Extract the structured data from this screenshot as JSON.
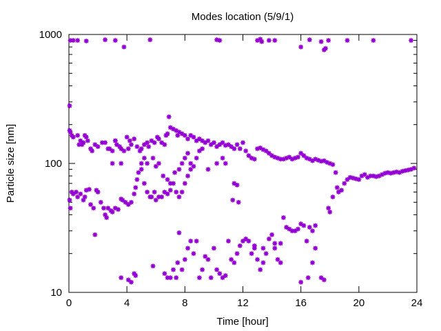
{
  "chart_data": {
    "type": "scatter",
    "title": "Modes location (5/9/1)",
    "xlabel": "Time [hour]",
    "ylabel": "Particle size [nm]",
    "xlim": [
      0,
      24
    ],
    "ylim": [
      10,
      1000
    ],
    "yscale": "log",
    "x_ticks": [
      0,
      4,
      8,
      12,
      16,
      20,
      24
    ],
    "x_tick_labels": [
      "0",
      "4",
      "8",
      "12",
      "16",
      "20",
      "24"
    ],
    "y_ticks": [
      10,
      100,
      1000
    ],
    "y_tick_labels": [
      "10",
      "100",
      "1000"
    ],
    "grid": false,
    "legend": "none",
    "marker_color": "#9400d3",
    "series": [
      {
        "color": "#9400d3",
        "points": [
          [
            0.05,
            280
          ],
          [
            0.05,
            180
          ],
          [
            0.1,
            175
          ],
          [
            0.2,
            165
          ],
          [
            0.3,
            160
          ],
          [
            0.6,
            165
          ],
          [
            0.7,
            140
          ],
          [
            0.8,
            150
          ],
          [
            0.9,
            140
          ],
          [
            1.0,
            145
          ],
          [
            1.1,
            165
          ],
          [
            1.2,
            160
          ],
          [
            1.3,
            150
          ],
          [
            1.5,
            130
          ],
          [
            1.6,
            125
          ],
          [
            1.8,
            140
          ],
          [
            2.0,
            135
          ],
          [
            2.3,
            145
          ],
          [
            2.5,
            145
          ],
          [
            2.8,
            130
          ],
          [
            3.0,
            125
          ],
          [
            3.2,
            150
          ],
          [
            3.3,
            140
          ],
          [
            3.5,
            135
          ],
          [
            3.6,
            130
          ],
          [
            3.8,
            125
          ],
          [
            4.0,
            160
          ],
          [
            4.2,
            150
          ],
          [
            4.3,
            140
          ],
          [
            4.5,
            155
          ],
          [
            4.7,
            135
          ],
          [
            4.9,
            125
          ],
          [
            5.0,
            130
          ],
          [
            5.2,
            140
          ],
          [
            5.4,
            145
          ],
          [
            5.5,
            135
          ],
          [
            5.7,
            150
          ],
          [
            5.9,
            145
          ],
          [
            6.1,
            160
          ],
          [
            6.2,
            155
          ],
          [
            6.4,
            145
          ],
          [
            6.6,
            140
          ],
          [
            6.7,
            165
          ],
          [
            6.8,
            170
          ],
          [
            6.9,
            230
          ],
          [
            7.0,
            190
          ],
          [
            7.2,
            185
          ],
          [
            7.4,
            180
          ],
          [
            7.5,
            165
          ],
          [
            7.6,
            175
          ],
          [
            7.8,
            170
          ],
          [
            8.0,
            165
          ],
          [
            8.2,
            155
          ],
          [
            8.4,
            165
          ],
          [
            8.6,
            160
          ],
          [
            8.8,
            150
          ],
          [
            9.0,
            155
          ],
          [
            9.2,
            150
          ],
          [
            9.4,
            145
          ],
          [
            9.6,
            150
          ],
          [
            9.8,
            140
          ],
          [
            10.0,
            145
          ],
          [
            10.2,
            135
          ],
          [
            10.4,
            140
          ],
          [
            10.6,
            145
          ],
          [
            10.8,
            138
          ],
          [
            11.0,
            140
          ],
          [
            11.2,
            135
          ],
          [
            11.4,
            130
          ],
          [
            11.6,
            140
          ],
          [
            11.8,
            130
          ],
          [
            12.0,
            145
          ],
          [
            12.2,
            125
          ],
          [
            12.4,
            115
          ],
          [
            12.6,
            110
          ],
          [
            12.8,
            108
          ],
          [
            13.0,
            130
          ],
          [
            13.2,
            132
          ],
          [
            13.4,
            128
          ],
          [
            13.6,
            125
          ],
          [
            13.8,
            120
          ],
          [
            14.0,
            115
          ],
          [
            14.2,
            112
          ],
          [
            14.4,
            110
          ],
          [
            14.6,
            108
          ],
          [
            14.8,
            108
          ],
          [
            15.0,
            110
          ],
          [
            15.2,
            112
          ],
          [
            15.4,
            108
          ],
          [
            15.6,
            110
          ],
          [
            15.8,
            112
          ],
          [
            16.0,
            120
          ],
          [
            16.2,
            115
          ],
          [
            16.4,
            110
          ],
          [
            16.6,
            108
          ],
          [
            16.8,
            105
          ],
          [
            17.0,
            108
          ],
          [
            17.2,
            106
          ],
          [
            17.4,
            104
          ],
          [
            17.6,
            105
          ],
          [
            17.8,
            102
          ],
          [
            18.0,
            100
          ],
          [
            18.2,
            98
          ],
          [
            18.4,
            85
          ],
          [
            18.5,
            65
          ],
          [
            18.6,
            60
          ],
          [
            18.8,
            62
          ],
          [
            19.0,
            70
          ],
          [
            19.2,
            75
          ],
          [
            19.4,
            78
          ],
          [
            19.6,
            77
          ],
          [
            19.8,
            76
          ],
          [
            20.0,
            75
          ],
          [
            20.2,
            80
          ],
          [
            20.4,
            82
          ],
          [
            20.6,
            78
          ],
          [
            20.8,
            80
          ],
          [
            21.0,
            80
          ],
          [
            21.2,
            79
          ],
          [
            21.4,
            80
          ],
          [
            21.6,
            82
          ],
          [
            21.8,
            84
          ],
          [
            22.0,
            85
          ],
          [
            22.2,
            84
          ],
          [
            22.4,
            85
          ],
          [
            22.6,
            86
          ],
          [
            22.8,
            85
          ],
          [
            23.0,
            87
          ],
          [
            23.2,
            88
          ],
          [
            23.4,
            89
          ],
          [
            23.6,
            90
          ],
          [
            23.8,
            92
          ],
          [
            0.05,
            52
          ],
          [
            0.1,
            45
          ],
          [
            0.2,
            60
          ],
          [
            0.3,
            58
          ],
          [
            0.5,
            60
          ],
          [
            0.6,
            55
          ],
          [
            0.8,
            58
          ],
          [
            1.0,
            52
          ],
          [
            1.1,
            55
          ],
          [
            1.2,
            62
          ],
          [
            1.4,
            63
          ],
          [
            1.5,
            48
          ],
          [
            1.7,
            45
          ],
          [
            1.9,
            62
          ],
          [
            2.0,
            60
          ],
          [
            2.2,
            50
          ],
          [
            2.4,
            45
          ],
          [
            2.5,
            40
          ],
          [
            2.6,
            38
          ],
          [
            2.7,
            45
          ],
          [
            2.9,
            43
          ],
          [
            3.0,
            42
          ],
          [
            3.2,
            45
          ],
          [
            3.4,
            44
          ],
          [
            3.6,
            53
          ],
          [
            3.7,
            52
          ],
          [
            3.9,
            50
          ],
          [
            4.1,
            48
          ],
          [
            4.3,
            50
          ],
          [
            4.5,
            58
          ],
          [
            4.6,
            65
          ],
          [
            4.7,
            75
          ],
          [
            4.8,
            85
          ],
          [
            5.0,
            90
          ],
          [
            5.2,
            70
          ],
          [
            5.4,
            60
          ],
          [
            5.6,
            55
          ],
          [
            5.7,
            55
          ],
          [
            5.9,
            60
          ],
          [
            6.0,
            52
          ],
          [
            6.2,
            55
          ],
          [
            6.4,
            55
          ],
          [
            6.6,
            60
          ],
          [
            6.8,
            58
          ],
          [
            7.0,
            62
          ],
          [
            7.2,
            70
          ],
          [
            7.4,
            60
          ],
          [
            7.6,
            55
          ],
          [
            7.8,
            60
          ],
          [
            8.0,
            70
          ],
          [
            8.2,
            80
          ],
          [
            8.4,
            90
          ],
          [
            8.6,
            95
          ],
          [
            8.8,
            110
          ],
          [
            9.0,
            125
          ],
          [
            9.2,
            130
          ],
          [
            2.7,
            130
          ],
          [
            3.0,
            100
          ],
          [
            3.2,
            150
          ],
          [
            3.6,
            100
          ],
          [
            4.1,
            130
          ],
          [
            5.0,
            100
          ],
          [
            5.2,
            110
          ],
          [
            5.4,
            100
          ],
          [
            5.8,
            110
          ],
          [
            6.0,
            95
          ],
          [
            6.2,
            100
          ],
          [
            6.5,
            80
          ],
          [
            6.8,
            75
          ],
          [
            7.0,
            70
          ],
          [
            7.3,
            85
          ],
          [
            7.6,
            90
          ],
          [
            7.8,
            100
          ],
          [
            8.0,
            110
          ],
          [
            8.2,
            120
          ],
          [
            8.4,
            100
          ],
          [
            9.6,
            90
          ],
          [
            10.2,
            100
          ],
          [
            10.6,
            110
          ],
          [
            10.8,
            100
          ],
          [
            11.4,
            70
          ],
          [
            11.6,
            68
          ],
          [
            11.3,
            52
          ],
          [
            11.7,
            50
          ],
          [
            17.9,
            45
          ],
          [
            18.0,
            42
          ],
          [
            18.2,
            55
          ],
          [
            0.1,
            900
          ],
          [
            0.3,
            900
          ],
          [
            0.6,
            900
          ],
          [
            1.2,
            890
          ],
          [
            2.5,
            910
          ],
          [
            3.2,
            900
          ],
          [
            3.8,
            800
          ],
          [
            5.6,
            910
          ],
          [
            10.2,
            910
          ],
          [
            10.4,
            900
          ],
          [
            13.0,
            900
          ],
          [
            13.2,
            920
          ],
          [
            13.3,
            880
          ],
          [
            13.8,
            900
          ],
          [
            14.2,
            900
          ],
          [
            16.0,
            800
          ],
          [
            16.6,
            910
          ],
          [
            17.4,
            880
          ],
          [
            17.6,
            760
          ],
          [
            17.7,
            780
          ],
          [
            17.9,
            900
          ],
          [
            19.2,
            900
          ],
          [
            21.0,
            900
          ],
          [
            23.6,
            900
          ],
          [
            1.8,
            28
          ],
          [
            3.6,
            13
          ],
          [
            4.1,
            12.5
          ],
          [
            4.3,
            12
          ],
          [
            4.5,
            14
          ],
          [
            4.6,
            13.5
          ],
          [
            5.8,
            16
          ],
          [
            6.6,
            14
          ],
          [
            6.8,
            13
          ],
          [
            7.0,
            13
          ],
          [
            7.2,
            15
          ],
          [
            7.4,
            13
          ],
          [
            7.5,
            17
          ],
          [
            7.6,
            29
          ],
          [
            7.8,
            15
          ],
          [
            8.0,
            18
          ],
          [
            8.2,
            22
          ],
          [
            8.4,
            25
          ],
          [
            8.6,
            20
          ],
          [
            8.8,
            25
          ],
          [
            9.0,
            13
          ],
          [
            9.2,
            15
          ],
          [
            9.4,
            19
          ],
          [
            9.6,
            18
          ],
          [
            9.8,
            13
          ],
          [
            10.0,
            22
          ],
          [
            10.2,
            15
          ],
          [
            10.4,
            14
          ],
          [
            10.6,
            13
          ],
          [
            10.8,
            13.5
          ],
          [
            11.0,
            25
          ],
          [
            11.2,
            18
          ],
          [
            11.4,
            17
          ],
          [
            11.6,
            20
          ],
          [
            11.8,
            23
          ],
          [
            12.0,
            25
          ],
          [
            12.2,
            26
          ],
          [
            12.4,
            25
          ],
          [
            12.6,
            20
          ],
          [
            12.8,
            22
          ],
          [
            13.0,
            18
          ],
          [
            13.2,
            15
          ],
          [
            13.4,
            17
          ],
          [
            13.6,
            20
          ],
          [
            13.8,
            26
          ],
          [
            14.0,
            28
          ],
          [
            14.2,
            24
          ],
          [
            14.4,
            18
          ],
          [
            14.6,
            17
          ],
          [
            14.8,
            38
          ],
          [
            15.0,
            32
          ],
          [
            15.2,
            31
          ],
          [
            15.4,
            30
          ],
          [
            15.6,
            30
          ],
          [
            15.8,
            31
          ],
          [
            16.0,
            34
          ],
          [
            16.2,
            33
          ],
          [
            16.4,
            25
          ],
          [
            16.6,
            32
          ],
          [
            16.8,
            30
          ],
          [
            17.0,
            33
          ],
          [
            16.0,
            12
          ],
          [
            16.5,
            13
          ],
          [
            16.8,
            17
          ],
          [
            17.0,
            22
          ],
          [
            17.4,
            13
          ],
          [
            17.6,
            12.5
          ],
          [
            14.6,
            24
          ],
          [
            14.2,
            22
          ],
          [
            12.8,
            23
          ],
          [
            13.4,
            22
          ]
        ]
      }
    ]
  }
}
